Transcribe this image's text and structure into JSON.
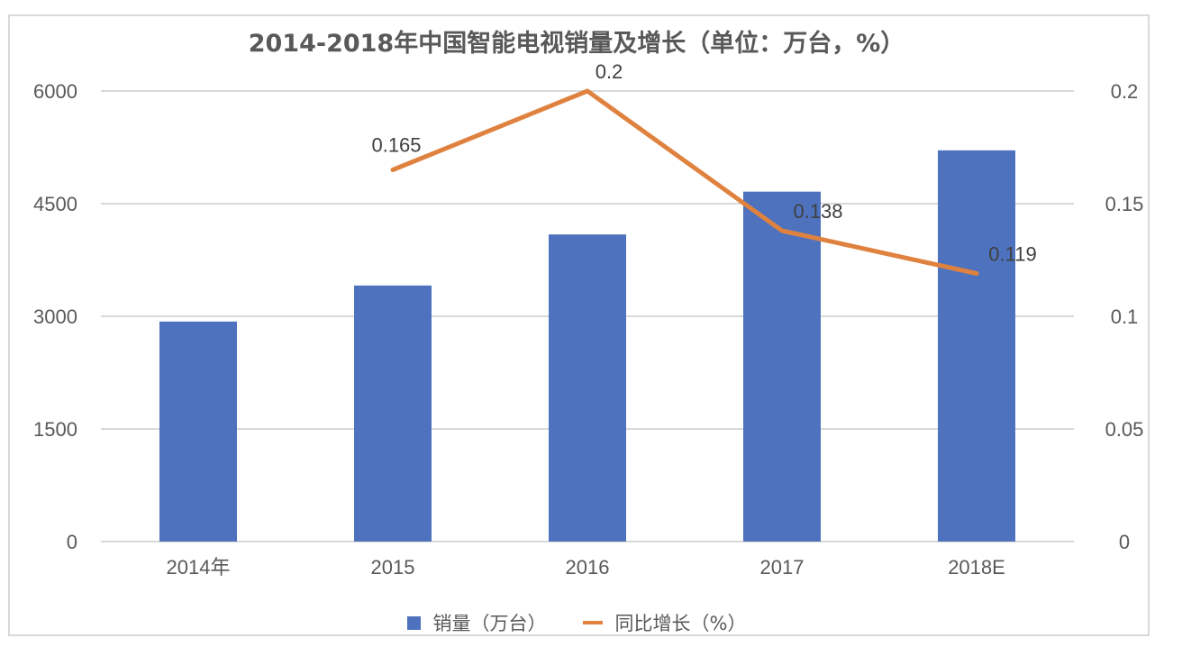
{
  "chart_data": {
    "type": "bar+line",
    "title": "2014-2018年中国智能电视销量及增长（单位：万台，%）",
    "categories": [
      "2014年",
      "2015",
      "2016",
      "2017",
      "2018E"
    ],
    "series": [
      {
        "name": "销量（万台）",
        "type": "bar",
        "axis": "left",
        "color": "#4E72BE",
        "values": [
          2930,
          3410,
          4090,
          4660,
          5210
        ]
      },
      {
        "name": "同比增长（%）",
        "type": "line",
        "axis": "right",
        "color": "#E0823F",
        "values": [
          null,
          0.165,
          0.2,
          0.138,
          0.119
        ],
        "data_labels": [
          "",
          "0.165",
          "0.2",
          "0.138",
          "0.119"
        ]
      }
    ],
    "left_axis": {
      "ylim": [
        0,
        6000
      ],
      "ticks": [
        "0",
        "1500",
        "3000",
        "4500",
        "6000"
      ]
    },
    "right_axis": {
      "ylim": [
        0,
        0.2
      ],
      "ticks": [
        "0",
        "0.05",
        "0.1",
        "0.15",
        "0.2"
      ]
    },
    "grid": true,
    "legend": "bottom"
  }
}
